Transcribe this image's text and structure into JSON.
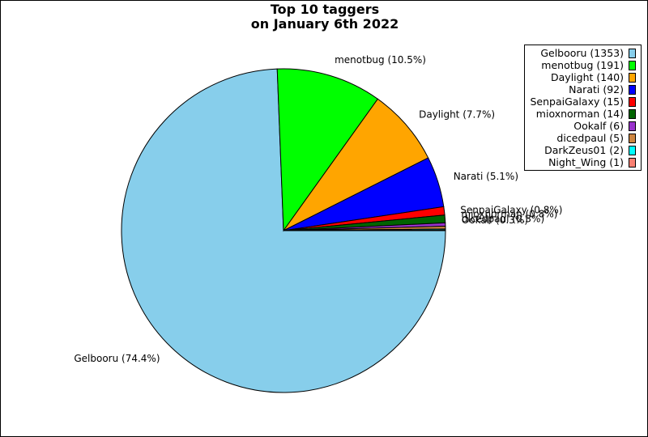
{
  "chart_data": {
    "type": "pie",
    "title_lines": [
      "Top 10 taggers",
      "on January 6th 2022"
    ],
    "slices": [
      {
        "name": "Gelbooru",
        "count": 1353,
        "percent": 74.4,
        "color": "#87ceeb",
        "legend": "Gelbooru (1353)",
        "label": "Gelbooru (74.4%)"
      },
      {
        "name": "menotbug",
        "count": 191,
        "percent": 10.5,
        "color": "#00ff00",
        "legend": "menotbug (191)",
        "label": "menotbug (10.5%)"
      },
      {
        "name": "Daylight",
        "count": 140,
        "percent": 7.7,
        "color": "#ffa500",
        "legend": "Daylight (140)",
        "label": "Daylight (7.7%)"
      },
      {
        "name": "Narati",
        "count": 92,
        "percent": 5.1,
        "color": "#0000ff",
        "legend": "Narati (92)",
        "label": "Narati (5.1%)"
      },
      {
        "name": "SenpaiGalaxy",
        "count": 15,
        "percent": 0.8,
        "color": "#ff0000",
        "legend": "SenpaiGalaxy (15)",
        "label": "SenpaiGalaxy (0.8%)"
      },
      {
        "name": "mioxnorman",
        "count": 14,
        "percent": 0.8,
        "color": "#006400",
        "legend": "mioxnorman (14)",
        "label": "mioxnorman (0.8%)"
      },
      {
        "name": "Ookalf",
        "count": 6,
        "percent": 0.3,
        "color": "#9932cc",
        "legend": "Ookalf (6)",
        "label": "Ookalf (0.3%)"
      },
      {
        "name": "dicedpaul",
        "count": 5,
        "percent": 0.3,
        "color": "#cd853f",
        "legend": "dicedpaul (5)",
        "label": "dicedpaul (0.3%)"
      },
      {
        "name": "DarkZeus01",
        "count": 2,
        "percent": null,
        "color": "#00ffff",
        "legend": "DarkZeus01 (2)",
        "label": ""
      },
      {
        "name": "Night_Wing",
        "count": 1,
        "percent": null,
        "color": "#fa8072",
        "legend": "Night_Wing (1)",
        "label": ""
      }
    ],
    "start": "right (3 o'clock)",
    "direction": "clockwise",
    "legend_position": "top-right"
  }
}
